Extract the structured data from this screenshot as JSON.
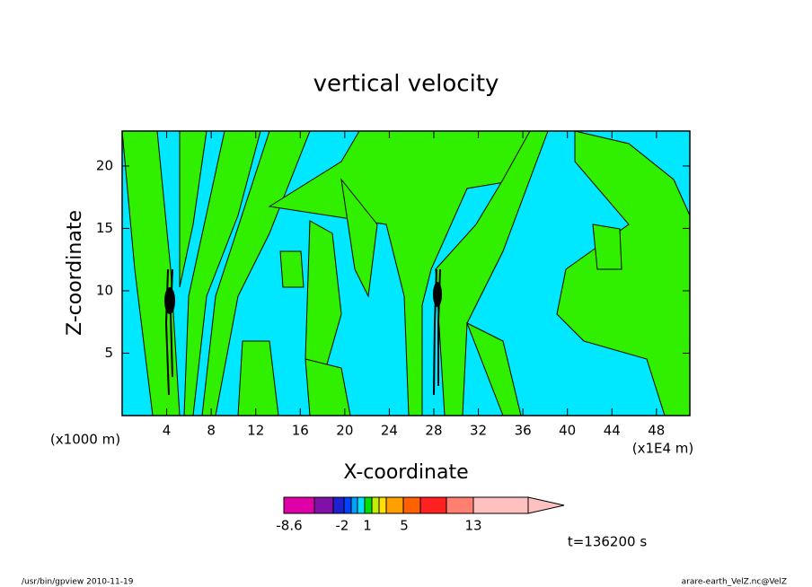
{
  "chart_data": {
    "type": "contour",
    "title": "vertical velocity",
    "x_label": "X-coordinate",
    "y_label": "Z-coordinate",
    "x_unit": "(x1E4 m)",
    "y_unit": "(x1000 m)",
    "xlim": [
      0,
      51
    ],
    "xticks": [
      4,
      8,
      12,
      16,
      20,
      24,
      28,
      32,
      36,
      40,
      44,
      48
    ],
    "ylim": [
      0,
      22.8
    ],
    "yticks": [
      5,
      10,
      15,
      20
    ],
    "colorbar": {
      "colors": [
        "#e000a8",
        "#8010a8",
        "#2020d0",
        "#0040ff",
        "#00a0ff",
        "#00e0ff",
        "#00e000",
        "#c0f000",
        "#ffe000",
        "#ffa000",
        "#ff6000",
        "#ff2020",
        "#ff8070",
        "#ffc0c0"
      ],
      "ticks": [
        -8.6,
        -2,
        1,
        5,
        13
      ]
    },
    "annotation": "t=136200 s",
    "footer_left": "/usr/bin/gpview   2010-11-19",
    "footer_right": "arare-earth_VelZ.nc@VelZ"
  }
}
